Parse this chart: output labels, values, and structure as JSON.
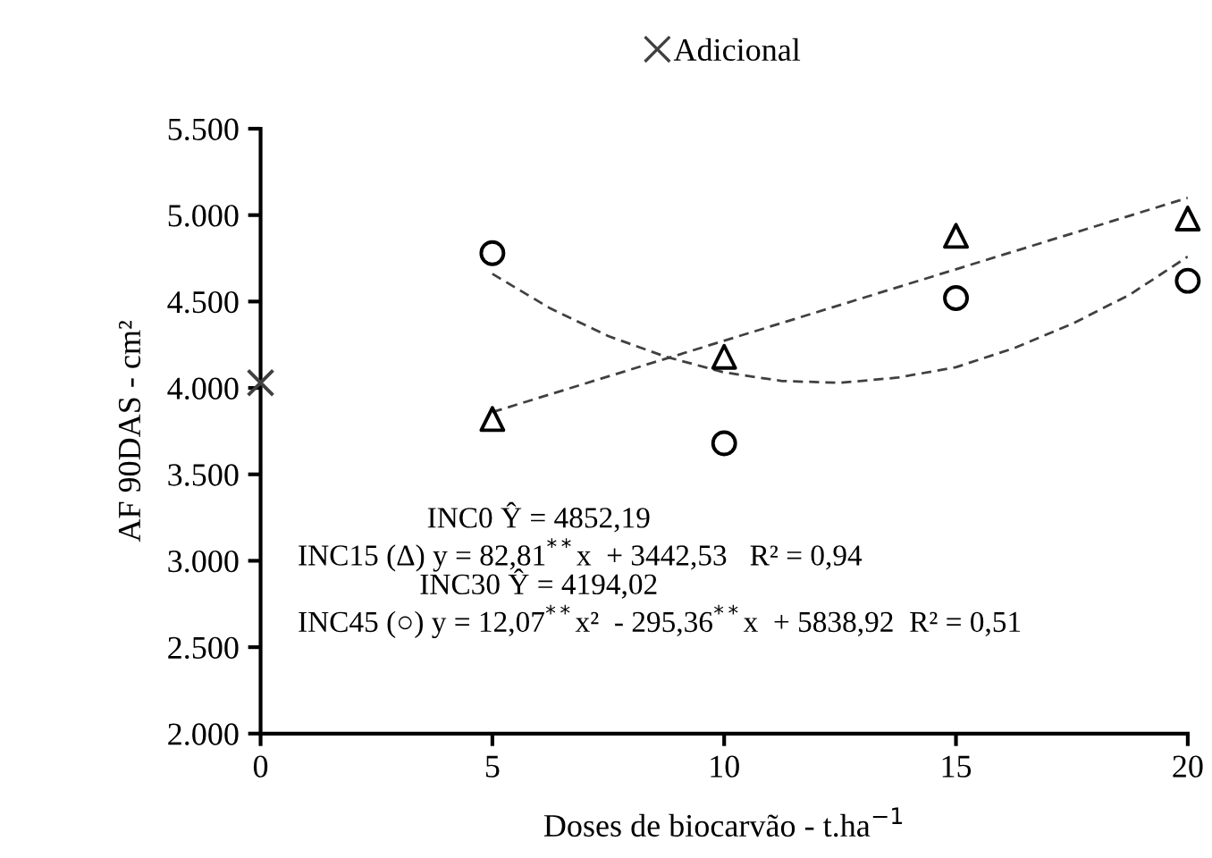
{
  "chart_data": {
    "type": "scatter",
    "xlabel": "Doses de biocarvão - t.ha$^{−1}$",
    "ylabel": "AF 90DAS - cm²",
    "x": [
      5,
      10,
      15,
      20
    ],
    "series": [
      {
        "marker": "triangle",
        "color": "#000000",
        "values": [
          3820,
          4180,
          4880,
          4980
        ]
      },
      {
        "marker": "circle",
        "color": "#000000",
        "values": [
          4780,
          3680,
          4520,
          4620
        ]
      },
      {
        "marker": "cross",
        "name": "Adicional",
        "color": "#404040",
        "x": [
          0
        ],
        "values": [
          4030
        ]
      },
      {
        "type": "line",
        "marker": "none",
        "line_style": "dashed",
        "color": "#404040",
        "x": [
          5,
          20
        ],
        "values": [
          3860,
          5100
        ]
      },
      {
        "type": "line",
        "marker": "none",
        "line_style": "dashed",
        "color": "#404040",
        "x": [
          5,
          6.25,
          7.5,
          8.75,
          10,
          11.25,
          12.5,
          13.75,
          15,
          16.25,
          17.5,
          18.75,
          20
        ],
        "values": [
          4660,
          4460,
          4300,
          4180,
          4090,
          4040,
          4030,
          4060,
          4120,
          4230,
          4370,
          4540,
          4760
        ]
      }
    ],
    "xlim": [
      0,
      20
    ],
    "xticks": [
      0,
      5,
      10,
      15,
      20
    ],
    "ylim": [
      2000,
      5500
    ],
    "yticks": [
      {
        "value": 2000,
        "label": "2.000"
      },
      {
        "value": 2500,
        "label": "2.500"
      },
      {
        "value": 3000,
        "label": "3.000"
      },
      {
        "value": 3500,
        "label": "3.500"
      },
      {
        "value": 4000,
        "label": "4.000"
      },
      {
        "value": 4500,
        "label": "4.500"
      },
      {
        "value": 5000,
        "label": "5.000"
      },
      {
        "value": 5500,
        "label": "5.500"
      }
    ],
    "legend": "top",
    "grid": false,
    "annotations": [
      "INC0 Ŷ = 4852,19",
      "INC15 (Δ) y = 82,81$^{**}$x  + 3442,53   R² = 0,94",
      "INC30 Ŷ = 4194,02",
      "INC45 (○) y = 12,07$^{**}$x²  - 295,36$^{**}$x  + 5838,92  R² = 0,51"
    ]
  }
}
